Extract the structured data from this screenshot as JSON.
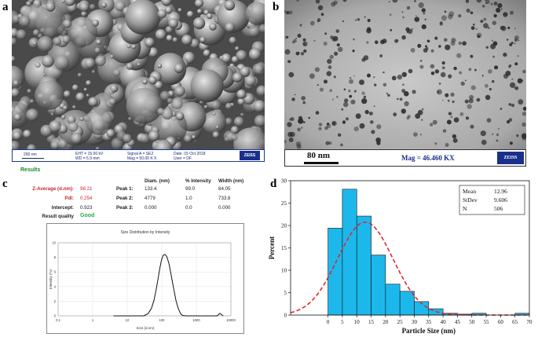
{
  "panels": {
    "a": "a",
    "b": "b",
    "c": "c",
    "d": "d"
  },
  "sem": {
    "scale": "200 nm",
    "eht": "EHT = 15.00 kV",
    "wd": "WD = 5.9 mm",
    "signal": "Signal A = SE2",
    "mag": "Mag = 50.00 K X",
    "date": "Date :15 Oct 2018",
    "user": "User = DF",
    "brand": "ZEISS"
  },
  "tem": {
    "scale": "80 nm",
    "mag": "Mag = 46.460 KX",
    "brand": "ZEISS"
  },
  "dls": {
    "results_title": "Results",
    "headers": [
      "Diam. (nm)",
      "% Intensity",
      "Width (nm)"
    ],
    "z_average_label": "Z-Average (d.nm):",
    "z_average_value": "98.21",
    "pdi_label": "PdI:",
    "pdi_value": "0.254",
    "intercept_label": "Intercept:",
    "intercept_value": "0.923",
    "quality_label": "Result quality",
    "quality_value": "Good",
    "peaks": [
      {
        "label": "Peak 1:",
        "diam": "133.4",
        "intensity": "99.0",
        "width": "84.05"
      },
      {
        "label": "Peak 2:",
        "diam": "4779",
        "intensity": "1.0",
        "width": "733.8"
      },
      {
        "label": "Peak 3:",
        "diam": "0.000",
        "intensity": "0.0",
        "width": "0.000"
      }
    ]
  },
  "chart_data": [
    {
      "type": "line",
      "title": "Size Distribution by Intensity",
      "xlabel": "Size (d.nm)",
      "ylabel": "Intensity (%)",
      "xscale": "log",
      "xlim": [
        0.1,
        10000
      ],
      "ylim": [
        0,
        10
      ],
      "xticks": [
        "0.1",
        "1",
        "10",
        "100",
        "1000",
        "10000"
      ],
      "yticks": [
        "0",
        "2",
        "4",
        "6",
        "8",
        "10"
      ],
      "grid": true,
      "x": [
        4,
        30,
        40,
        50,
        60,
        70,
        80,
        90,
        100,
        110,
        125,
        140,
        160,
        180,
        200,
        230,
        260,
        300,
        350,
        400,
        500,
        4000,
        4779,
        6000
      ],
      "y": [
        0,
        0,
        0.3,
        1.0,
        2.2,
        3.8,
        5.4,
        6.8,
        7.8,
        8.3,
        8.4,
        8.1,
        7.2,
        6.0,
        4.8,
        3.3,
        2.0,
        1.0,
        0.3,
        0.05,
        0,
        0,
        0.35,
        0
      ]
    },
    {
      "type": "bar",
      "xlabel": "Particle Size (nm)",
      "ylabel": "Percent",
      "xlim": [
        -13,
        70
      ],
      "ylim": [
        0,
        30
      ],
      "xticks": [
        0,
        5,
        10,
        15,
        20,
        25,
        30,
        35,
        40,
        45,
        50,
        55,
        60,
        65,
        70
      ],
      "yticks": [
        0,
        5,
        10,
        15,
        20,
        25,
        30
      ],
      "bin_width": 5,
      "bin_starts": [
        0,
        5,
        10,
        15,
        20,
        25,
        30,
        35,
        40,
        45,
        50,
        55,
        60,
        65
      ],
      "values": [
        19.4,
        28.1,
        22.1,
        13.4,
        6.9,
        5.3,
        3.0,
        1.4,
        0.4,
        0.2,
        0.4,
        0,
        0,
        0.4
      ],
      "fit": {
        "type": "normal",
        "mean": 12.96,
        "stdev": 9.606
      },
      "legend": {
        "placement": "top-right",
        "rows": [
          [
            "Mean",
            "12.96"
          ],
          [
            "StDev",
            "9.606"
          ],
          [
            "N",
            "506"
          ]
        ]
      },
      "colors": {
        "bar": "#1cb8ec",
        "fit": "#e0262a"
      }
    }
  ]
}
